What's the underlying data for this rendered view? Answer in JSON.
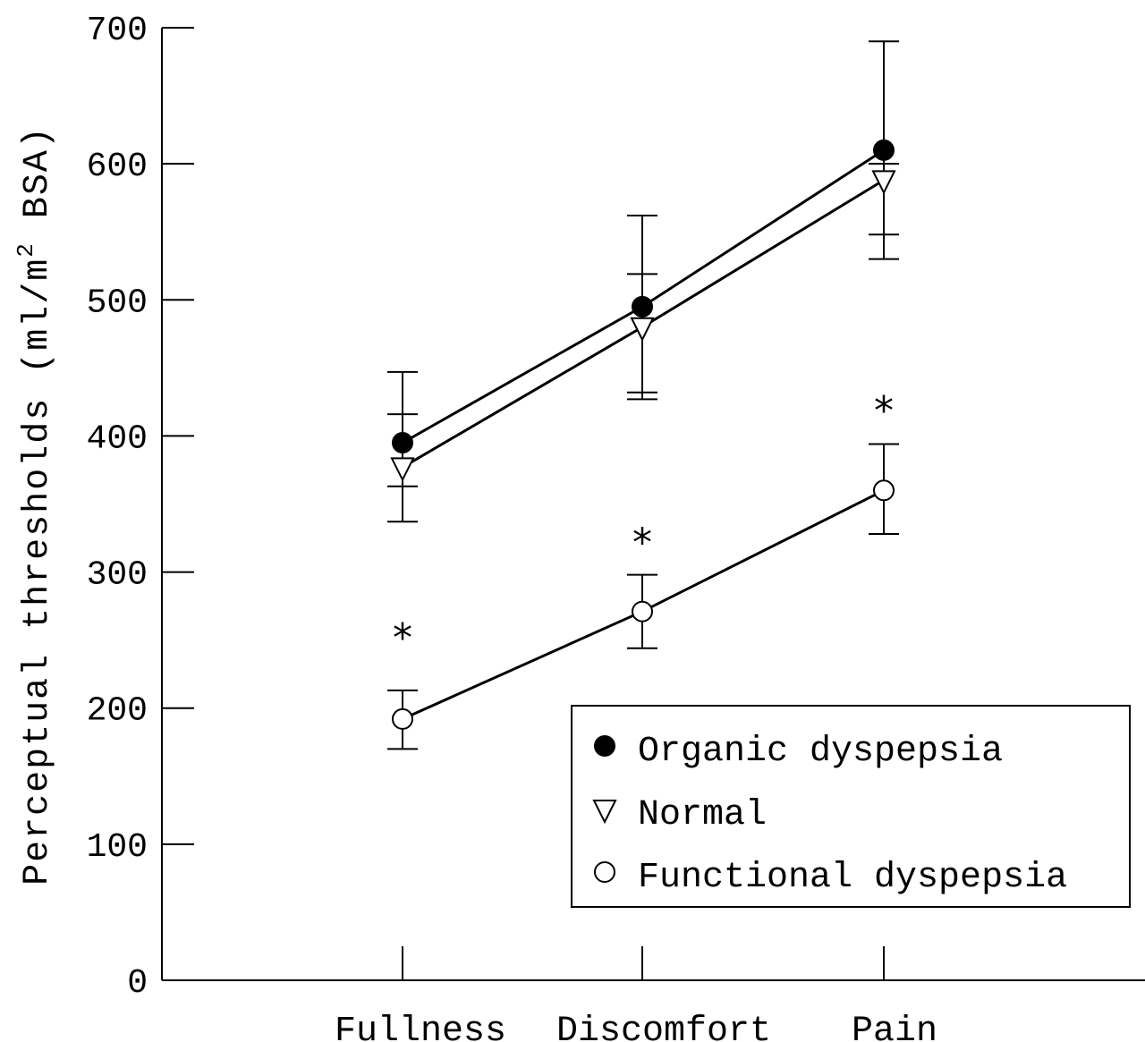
{
  "chart_data": {
    "type": "line",
    "xlabel": "",
    "ylabel": "Perceptual thresholds (ml/m",
    "ylabel_superscript": "2",
    "ylabel_tail": " BSA)",
    "ylim": [
      0,
      700
    ],
    "yticks": [
      "0",
      "100",
      "200",
      "300",
      "400",
      "500",
      "600",
      "700"
    ],
    "categories": [
      "Fullness",
      "Discomfort",
      "Pain"
    ],
    "grid": false,
    "legend_position": "bottom-right",
    "series": [
      {
        "name": "Organic dyspepsia",
        "marker": "filled-circle",
        "values": [
          395,
          495,
          610
        ],
        "error": [
          [
            363,
            447
          ],
          [
            432,
            562
          ],
          [
            530,
            690
          ]
        ]
      },
      {
        "name": "Normal",
        "marker": "open-triangle-down",
        "values": [
          377,
          480,
          588
        ],
        "error": [
          [
            337,
            416
          ],
          [
            427,
            519
          ],
          [
            548,
            600
          ]
        ]
      },
      {
        "name": "Functional dyspepsia",
        "marker": "open-circle",
        "values": [
          192,
          271,
          360
        ],
        "error": [
          [
            170,
            213
          ],
          [
            244,
            298
          ],
          [
            328,
            394
          ]
        ]
      }
    ],
    "annotations": [
      {
        "category": "Fullness",
        "text": "*",
        "value": 255
      },
      {
        "category": "Discomfort",
        "text": "*",
        "value": 325
      },
      {
        "category": "Pain",
        "text": "*",
        "value": 422
      }
    ]
  },
  "colors": {
    "ink": "#000000",
    "background": "#ffffff"
  }
}
